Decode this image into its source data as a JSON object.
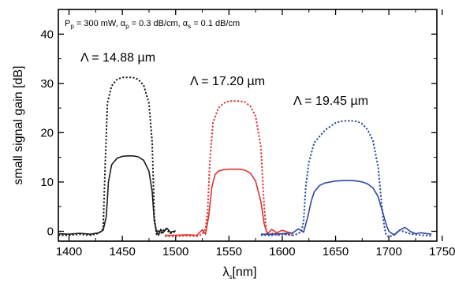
{
  "chart_data": {
    "type": "line",
    "xlabel_symbol": "λ",
    "xlabel_sub": "s",
    "xlabel_rest": "[nm]",
    "ylabel": "small signal gain [dB]",
    "xlim": [
      1390,
      1745
    ],
    "ylim": [
      -2,
      45
    ],
    "xticks": [
      "1400",
      "1450",
      "1500",
      "1550",
      "1600",
      "1650",
      "1700",
      "1750"
    ],
    "yticks": [
      "0",
      "10",
      "20",
      "30",
      "40"
    ],
    "params": {
      "p_sym": "P",
      "p_sub": "p",
      "p_val": " = 300 mW, ",
      "ap_sym": "α",
      "ap_sub": "p",
      "ap_val": " = 0.3 dB/cm, ",
      "as_sym": "α",
      "as_sub": "s",
      "as_val": " = 0.1 dB/cm"
    },
    "annotations": [
      "Λ = 14.88 µm",
      "Λ = 17.20 µm",
      "Λ = 19.45 µm"
    ],
    "colors": {
      "black": "#1a1a1a",
      "red": "#e03030",
      "blue": "#2c48a0"
    },
    "series": [
      {
        "color": "black",
        "style": "dotted",
        "x": [
          1390,
          1400,
          1410,
          1420,
          1428,
          1432,
          1434,
          1436,
          1440,
          1445,
          1450,
          1455,
          1460,
          1465,
          1470,
          1475,
          1478,
          1480,
          1482,
          1484,
          1486,
          1490,
          1495,
          1500
        ],
        "y": [
          -0.8,
          -0.8,
          -0.6,
          -0.8,
          -0.4,
          0.5,
          14,
          26,
          29.5,
          30.8,
          31.2,
          31.2,
          31.2,
          30.8,
          29.6,
          26,
          18,
          3,
          -0.6,
          0.3,
          -0.5,
          0.6,
          -0.4,
          0
        ]
      },
      {
        "color": "black",
        "style": "solid",
        "x": [
          1390,
          1400,
          1410,
          1420,
          1428,
          1432,
          1435,
          1437,
          1440,
          1445,
          1450,
          1455,
          1460,
          1465,
          1470,
          1475,
          1478,
          1480,
          1482,
          1484,
          1486,
          1488,
          1492,
          1495,
          1500
        ],
        "y": [
          -0.5,
          -0.6,
          -0.4,
          -0.6,
          -0.3,
          0.2,
          3,
          10,
          13.5,
          14.8,
          15.2,
          15.3,
          15.3,
          15.1,
          14.4,
          12.2,
          8,
          2,
          0,
          -0.8,
          0.4,
          -0.3,
          0.6,
          -0.2,
          0.1
        ]
      },
      {
        "color": "red",
        "style": "dotted",
        "x": [
          1490,
          1500,
          1510,
          1520,
          1525,
          1528,
          1530,
          1532,
          1535,
          1540,
          1545,
          1550,
          1555,
          1560,
          1565,
          1570,
          1575,
          1580,
          1583,
          1585,
          1588,
          1592,
          1596,
          1600,
          1610
        ],
        "y": [
          -1,
          -1,
          -0.9,
          -1,
          -0.6,
          0.5,
          4,
          14,
          22,
          25,
          26,
          26.4,
          26.4,
          26.4,
          26.2,
          25.4,
          23.4,
          17,
          5,
          0,
          -0.8,
          -0.3,
          -0.8,
          -0.5,
          -0.8
        ]
      },
      {
        "color": "red",
        "style": "solid",
        "x": [
          1490,
          1500,
          1510,
          1520,
          1525,
          1528,
          1531,
          1534,
          1537,
          1540,
          1545,
          1550,
          1555,
          1560,
          1565,
          1570,
          1575,
          1580,
          1583,
          1586,
          1590,
          1595,
          1600,
          1610
        ],
        "y": [
          -0.8,
          -0.8,
          -0.7,
          -0.8,
          0.3,
          -0.6,
          3,
          9,
          11.5,
          12.2,
          12.5,
          12.6,
          12.6,
          12.6,
          12.4,
          11.8,
          10.2,
          6,
          1.5,
          -0.6,
          0.4,
          -0.3,
          0.2,
          -0.5
        ]
      },
      {
        "color": "blue",
        "style": "dotted",
        "x": [
          1580,
          1590,
          1600,
          1610,
          1615,
          1618,
          1620,
          1622,
          1625,
          1630,
          1640,
          1650,
          1655,
          1660,
          1665,
          1670,
          1675,
          1680,
          1685,
          1690,
          1693,
          1695,
          1697,
          1700,
          1705,
          1710,
          1720,
          1730,
          1740
        ],
        "y": [
          -0.8,
          -0.8,
          -0.6,
          -0.8,
          -0.5,
          0,
          2,
          9,
          14,
          18,
          20.5,
          22,
          22.3,
          22.4,
          22.4,
          22.3,
          21.8,
          20.6,
          18.4,
          13,
          6,
          2,
          -0.5,
          -1.2,
          -0.6,
          0.2,
          -0.5,
          -0.8,
          -0.9
        ]
      },
      {
        "color": "blue",
        "style": "solid",
        "x": [
          1580,
          1590,
          1600,
          1610,
          1615,
          1620,
          1624,
          1627,
          1630,
          1635,
          1640,
          1650,
          1660,
          1665,
          1670,
          1675,
          1680,
          1685,
          1690,
          1694,
          1698,
          1700,
          1705,
          1710,
          1715,
          1720,
          1725,
          1730,
          1740
        ],
        "y": [
          -0.6,
          -0.6,
          -0.5,
          -0.3,
          0.5,
          -0.2,
          3,
          6,
          8,
          9.3,
          9.8,
          10.2,
          10.3,
          10.3,
          10.2,
          10,
          9.6,
          8.8,
          7,
          4,
          1,
          0,
          -0.8,
          0.2,
          0.8,
          0,
          -0.5,
          -0.3,
          -0.6
        ]
      }
    ]
  }
}
